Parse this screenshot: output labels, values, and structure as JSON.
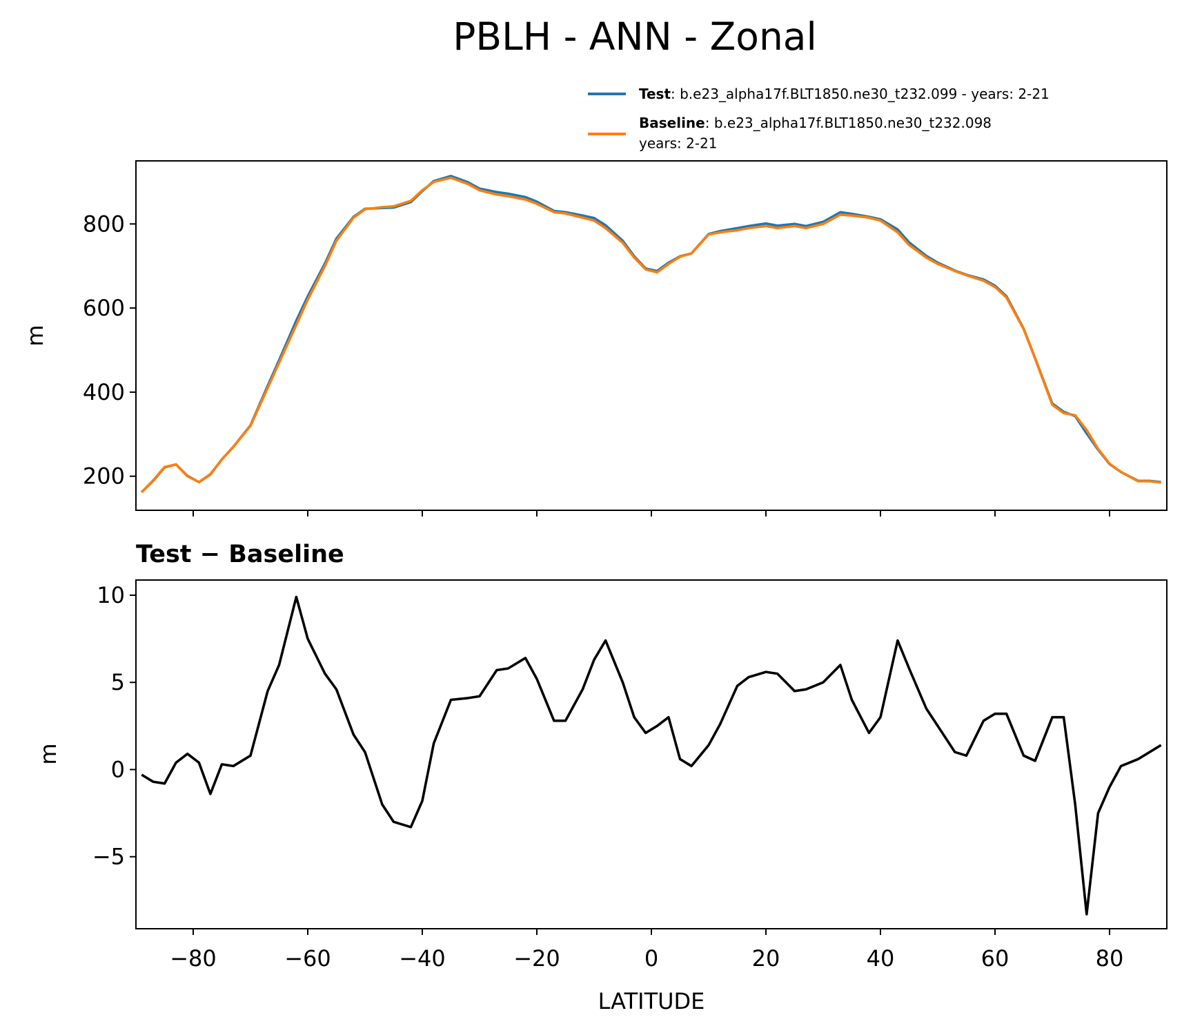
{
  "chart_data": [
    {
      "type": "line",
      "title": "PBLH - ANN - Zonal",
      "ylabel": "m",
      "x": [
        -89,
        -87,
        -85,
        -83,
        -81,
        -79,
        -77,
        -75,
        -73,
        -70,
        -67,
        -65,
        -62,
        -60,
        -57,
        -55,
        -52,
        -50,
        -47,
        -45,
        -42,
        -40,
        -38,
        -35,
        -32,
        -30,
        -27,
        -25,
        -22,
        -20,
        -17,
        -15,
        -12,
        -10,
        -8,
        -5,
        -3,
        -1,
        1,
        3,
        5,
        7,
        10,
        12,
        15,
        17,
        20,
        22,
        25,
        27,
        30,
        33,
        35,
        38,
        40,
        43,
        45,
        48,
        50,
        53,
        55,
        58,
        60,
        62,
        65,
        67,
        70,
        72,
        74,
        76,
        78,
        80,
        82,
        85,
        87,
        89
      ],
      "series": [
        {
          "name": "Test",
          "description": [
            ": b.e23_alpha17f.BLT1850.ne30_t232.099 - years: 2-21"
          ],
          "color": "#1f77b4",
          "values": [
            162,
            189,
            221,
            228,
            201,
            186,
            204,
            240,
            270,
            321,
            415,
            476,
            570,
            628,
            706,
            765,
            817,
            836,
            838,
            839,
            852,
            878,
            902,
            914,
            899,
            884,
            876,
            872,
            864,
            853,
            831,
            828,
            820,
            814,
            797,
            760,
            723,
            694,
            688,
            708,
            723,
            730,
            776,
            783,
            790,
            795,
            801,
            796,
            800,
            795,
            805,
            828,
            824,
            817,
            811,
            787,
            756,
            724,
            708,
            689,
            679,
            668,
            653,
            628,
            551,
            481,
            373,
            353,
            343,
            302,
            263,
            229,
            210,
            189,
            189,
            186
          ]
        },
        {
          "name": "Baseline",
          "description": [
            ": b.e23_alpha17f.BLT1850.ne30_t232.098",
            "years: 2-21"
          ],
          "color": "#ff7f0e",
          "values": [
            162,
            190,
            222,
            228,
            200,
            186,
            205,
            240,
            270,
            320,
            410,
            470,
            560,
            620,
            700,
            760,
            815,
            835,
            840,
            842,
            855,
            880,
            900,
            910,
            895,
            880,
            870,
            866,
            858,
            848,
            828,
            825,
            815,
            808,
            790,
            755,
            720,
            692,
            685,
            705,
            722,
            730,
            775,
            780,
            785,
            790,
            795,
            790,
            795,
            790,
            800,
            822,
            820,
            815,
            808,
            780,
            750,
            720,
            705,
            688,
            678,
            665,
            650,
            625,
            550,
            480,
            370,
            350,
            345,
            310,
            265,
            230,
            210,
            188,
            188,
            185
          ]
        }
      ],
      "xlim": [
        -90,
        90
      ],
      "xticks": [
        -80,
        -60,
        -40,
        -20,
        0,
        20,
        40,
        60,
        80
      ],
      "ylim": [
        119,
        950
      ],
      "yticks": [
        200,
        400,
        600,
        800
      ]
    },
    {
      "type": "line",
      "title": "Test − Baseline",
      "xlabel": "LATITUDE",
      "ylabel": "m",
      "x": [
        -89,
        -87,
        -85,
        -83,
        -81,
        -79,
        -77,
        -75,
        -73,
        -70,
        -67,
        -65,
        -62,
        -60,
        -57,
        -55,
        -52,
        -50,
        -47,
        -45,
        -42,
        -40,
        -38,
        -35,
        -32,
        -30,
        -27,
        -25,
        -22,
        -20,
        -17,
        -15,
        -12,
        -10,
        -8,
        -5,
        -3,
        -1,
        1,
        3,
        5,
        7,
        10,
        12,
        15,
        17,
        20,
        22,
        25,
        27,
        30,
        33,
        35,
        38,
        40,
        43,
        45,
        48,
        50,
        53,
        55,
        58,
        60,
        62,
        65,
        67,
        70,
        72,
        74,
        76,
        78,
        80,
        82,
        85,
        87,
        89
      ],
      "series": [
        {
          "color": "#000000",
          "values": [
            -0.3,
            -0.7,
            -0.8,
            0.4,
            0.9,
            0.4,
            -1.4,
            0.3,
            0.2,
            0.8,
            4.5,
            6.0,
            9.9,
            7.5,
            5.5,
            4.6,
            2.0,
            1.0,
            -2.0,
            -3.0,
            -3.3,
            -1.8,
            1.5,
            4.0,
            4.1,
            4.2,
            5.7,
            5.8,
            6.4,
            5.2,
            2.8,
            2.8,
            4.6,
            6.3,
            7.4,
            5.0,
            3.0,
            2.1,
            2.5,
            3.0,
            0.6,
            0.2,
            1.4,
            2.6,
            4.8,
            5.3,
            5.6,
            5.5,
            4.5,
            4.6,
            5.0,
            6.0,
            4.0,
            2.1,
            3.0,
            7.4,
            5.8,
            3.5,
            2.5,
            1.0,
            0.8,
            2.8,
            3.2,
            3.2,
            0.8,
            0.5,
            3.0,
            3.0,
            -2.0,
            -8.3,
            -2.5,
            -1.0,
            0.2,
            0.6,
            1.0,
            1.4
          ]
        }
      ],
      "xlim": [
        -90,
        90
      ],
      "xticks": [
        {
          "value": -80,
          "label": "−80"
        },
        {
          "value": -60,
          "label": "−60"
        },
        {
          "value": -40,
          "label": "−40"
        },
        {
          "value": -20,
          "label": "−20"
        },
        0,
        20,
        40,
        60,
        80
      ],
      "ylim": [
        -9.13,
        10.87
      ],
      "yticks": [
        {
          "value": -5,
          "label": "−5"
        },
        0,
        5,
        10
      ]
    }
  ]
}
